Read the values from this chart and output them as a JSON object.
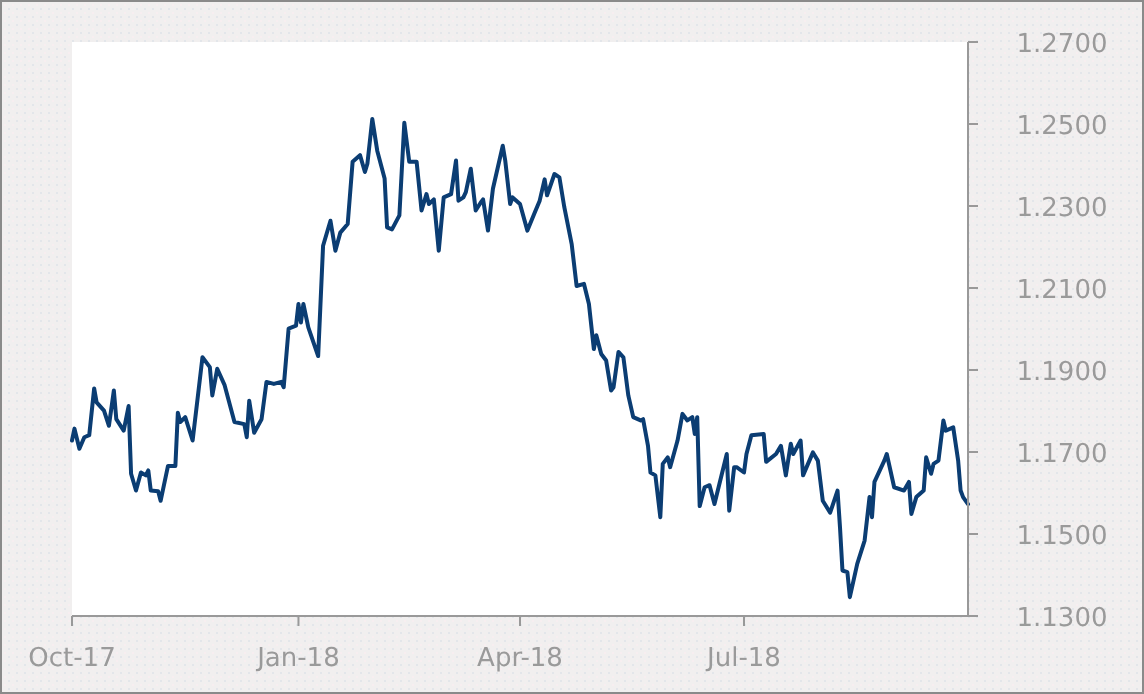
{
  "chart_data": {
    "type": "line",
    "grid": false,
    "marker": "none",
    "line_style": "solid",
    "xlim": [
      "2017-10-01",
      "2018-09-30"
    ],
    "xticks": [
      {
        "value": "2017-10-01",
        "label": "Oct-17"
      },
      {
        "value": "2018-01-01",
        "label": "Jan-18"
      },
      {
        "value": "2018-04-01",
        "label": "Apr-18"
      },
      {
        "value": "2018-07-01",
        "label": "Jul-18"
      }
    ],
    "ylim": [
      1.13,
      1.27
    ],
    "yticks": [
      {
        "value": 1.13,
        "label": "1.1300"
      },
      {
        "value": 1.15,
        "label": "1.1500"
      },
      {
        "value": 1.17,
        "label": "1.1700"
      },
      {
        "value": 1.19,
        "label": "1.1900"
      },
      {
        "value": 1.21,
        "label": "1.2100"
      },
      {
        "value": 1.23,
        "label": "1.2300"
      },
      {
        "value": 1.25,
        "label": "1.2500"
      },
      {
        "value": 1.27,
        "label": "1.2700"
      }
    ],
    "x": [
      "2017-10-01",
      "2017-10-02",
      "2017-10-04",
      "2017-10-06",
      "2017-10-08",
      "2017-10-10",
      "2017-10-11",
      "2017-10-14",
      "2017-10-16",
      "2017-10-18",
      "2017-10-19",
      "2017-10-22",
      "2017-10-24",
      "2017-10-25",
      "2017-10-27",
      "2017-10-29",
      "2017-10-31",
      "2017-11-01",
      "2017-11-02",
      "2017-11-05",
      "2017-11-06",
      "2017-11-09",
      "2017-11-12",
      "2017-11-13",
      "2017-11-14",
      "2017-11-16",
      "2017-11-19",
      "2017-11-21",
      "2017-11-23",
      "2017-11-26",
      "2017-11-27",
      "2017-11-29",
      "2017-12-02",
      "2017-12-06",
      "2017-12-10",
      "2017-12-11",
      "2017-12-12",
      "2017-12-14",
      "2017-12-17",
      "2017-12-19",
      "2017-12-22",
      "2017-12-25",
      "2017-12-26",
      "2017-12-28",
      "2017-12-31",
      "2018-01-01",
      "2018-01-02",
      "2018-01-03",
      "2018-01-05",
      "2018-01-09",
      "2018-01-11",
      "2018-01-14",
      "2018-01-16",
      "2018-01-18",
      "2018-01-21",
      "2018-01-23",
      "2018-01-26",
      "2018-01-28",
      "2018-01-29",
      "2018-01-31",
      "2018-02-02",
      "2018-02-05",
      "2018-02-06",
      "2018-02-08",
      "2018-02-11",
      "2018-02-13",
      "2018-02-15",
      "2018-02-18",
      "2018-02-20",
      "2018-02-22",
      "2018-02-23",
      "2018-02-25",
      "2018-02-27",
      "2018-03-01",
      "2018-03-04",
      "2018-03-06",
      "2018-03-07",
      "2018-03-09",
      "2018-03-10",
      "2018-03-12",
      "2018-03-14",
      "2018-03-16",
      "2018-03-17",
      "2018-03-19",
      "2018-03-21",
      "2018-03-25",
      "2018-03-26",
      "2018-03-28",
      "2018-03-29",
      "2018-04-01",
      "2018-04-04",
      "2018-04-07",
      "2018-04-09",
      "2018-04-11",
      "2018-04-12",
      "2018-04-15",
      "2018-04-17",
      "2018-04-19",
      "2018-04-22",
      "2018-04-24",
      "2018-04-27",
      "2018-04-29",
      "2018-05-01",
      "2018-05-02",
      "2018-05-04",
      "2018-05-06",
      "2018-05-08",
      "2018-05-09",
      "2018-05-11",
      "2018-05-13",
      "2018-05-15",
      "2018-05-17",
      "2018-05-20",
      "2018-05-21",
      "2018-05-23",
      "2018-05-24",
      "2018-05-26",
      "2018-05-28",
      "2018-05-29",
      "2018-05-31",
      "2018-06-01",
      "2018-06-04",
      "2018-06-06",
      "2018-06-08",
      "2018-06-10",
      "2018-06-11",
      "2018-06-12",
      "2018-06-13",
      "2018-06-15",
      "2018-06-17",
      "2018-06-19",
      "2018-06-21",
      "2018-06-24",
      "2018-06-25",
      "2018-06-27",
      "2018-06-28",
      "2018-07-01",
      "2018-07-02",
      "2018-07-04",
      "2018-07-09",
      "2018-07-10",
      "2018-07-14",
      "2018-07-16",
      "2018-07-18",
      "2018-07-20",
      "2018-07-21",
      "2018-07-24",
      "2018-07-25",
      "2018-07-29",
      "2018-07-31",
      "2018-08-02",
      "2018-08-05",
      "2018-08-08",
      "2018-08-09",
      "2018-08-10",
      "2018-08-12",
      "2018-08-13",
      "2018-08-16",
      "2018-08-19",
      "2018-08-21",
      "2018-08-22",
      "2018-08-23",
      "2018-08-27",
      "2018-08-28",
      "2018-08-31",
      "2018-09-04",
      "2018-09-06",
      "2018-09-07",
      "2018-09-09",
      "2018-09-12",
      "2018-09-13",
      "2018-09-15",
      "2018-09-16",
      "2018-09-18",
      "2018-09-20",
      "2018-09-21",
      "2018-09-24",
      "2018-09-26",
      "2018-09-27",
      "2018-09-28",
      "2018-09-30"
    ],
    "series": [
      {
        "color": "#0b3d73",
        "values": [
          1.1728,
          1.1757,
          1.1708,
          1.1736,
          1.1741,
          1.1855,
          1.1821,
          1.1801,
          1.1764,
          1.185,
          1.178,
          1.1752,
          1.1812,
          1.1647,
          1.1606,
          1.165,
          1.1643,
          1.1655,
          1.1606,
          1.1604,
          1.1581,
          1.1666,
          1.1666,
          1.1796,
          1.1773,
          1.1785,
          1.1728,
          1.1829,
          1.1931,
          1.1907,
          1.1838,
          1.1903,
          1.1863,
          1.1773,
          1.1768,
          1.1736,
          1.1825,
          1.1747,
          1.178,
          1.1871,
          1.1866,
          1.1871,
          1.1858,
          1.2001,
          1.2008,
          1.2061,
          1.2016,
          1.2061,
          1.2004,
          1.1934,
          1.2203,
          1.2264,
          1.2191,
          1.2235,
          1.2256,
          1.2408,
          1.2424,
          1.2383,
          1.2403,
          1.2512,
          1.2435,
          1.2367,
          1.2248,
          1.2243,
          1.2277,
          1.2503,
          1.2408,
          1.2408,
          1.2289,
          1.2329,
          1.2305,
          1.2316,
          1.2191,
          1.2321,
          1.2329,
          1.2411,
          1.2313,
          1.2321,
          1.2334,
          1.2391,
          1.2289,
          1.2308,
          1.2316,
          1.224,
          1.2342,
          1.2447,
          1.2411,
          1.2305,
          1.2321,
          1.2305,
          1.224,
          1.2284,
          1.2313,
          1.2365,
          1.2326,
          1.2378,
          1.237,
          1.2297,
          1.2207,
          1.2105,
          1.211,
          1.2061,
          1.1951,
          1.1985,
          1.1939,
          1.1923,
          1.185,
          1.1858,
          1.1944,
          1.1931,
          1.1838,
          1.1785,
          1.1777,
          1.178,
          1.1715,
          1.165,
          1.1643,
          1.1541,
          1.1671,
          1.1687,
          1.1663,
          1.1728,
          1.1793,
          1.1777,
          1.1785,
          1.1744,
          1.1785,
          1.1568,
          1.1614,
          1.1619,
          1.1573,
          1.1622,
          1.1695,
          1.1557,
          1.1663,
          1.1663,
          1.165,
          1.1695,
          1.1741,
          1.1744,
          1.1676,
          1.1695,
          1.1715,
          1.1643,
          1.172,
          1.1695,
          1.1728,
          1.1643,
          1.1699,
          1.1679,
          1.1581,
          1.1552,
          1.1606,
          1.1516,
          1.1411,
          1.1407,
          1.1346,
          1.1427,
          1.1484,
          1.159,
          1.1541,
          1.1627,
          1.1679,
          1.1695,
          1.1614,
          1.1606,
          1.1627,
          1.1549,
          1.159,
          1.1606,
          1.1687,
          1.1647,
          1.1671,
          1.1679,
          1.1777,
          1.1752,
          1.176,
          1.1679,
          1.1606,
          1.159,
          1.1573
        ]
      }
    ]
  }
}
